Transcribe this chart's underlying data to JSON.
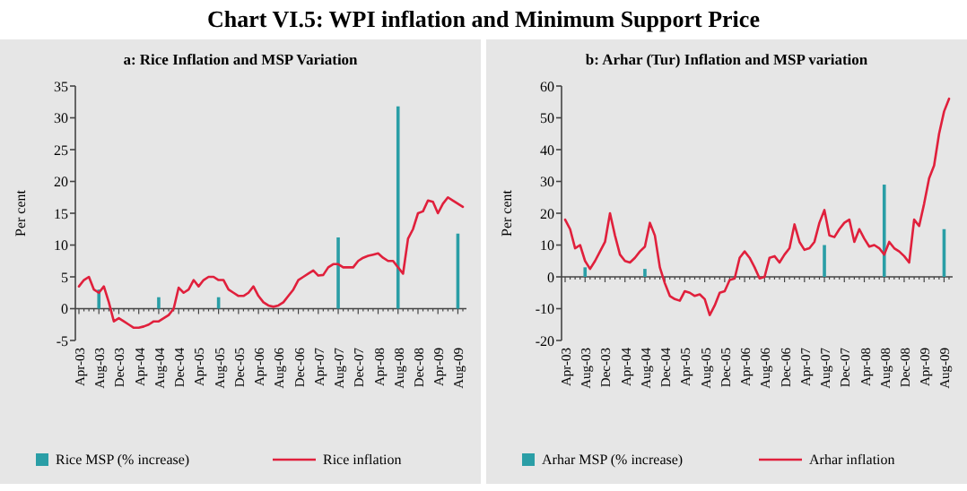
{
  "chart_data": [
    {
      "type": "line",
      "title": "Chart VI.5: WPI inflation and Minimum Support Price",
      "subtitle": "a: Rice Inflation and MSP Variation",
      "ylabel": "Per cent",
      "legend": "bottom",
      "categories": [
        "Apr-03",
        null,
        null,
        null,
        "Aug-03",
        null,
        null,
        null,
        "Dec-03",
        null,
        null,
        null,
        "Apr-04",
        null,
        null,
        null,
        "Aug-04",
        null,
        null,
        null,
        "Dec-04",
        null,
        null,
        null,
        "Apr-05",
        null,
        null,
        null,
        "Aug-05",
        null,
        null,
        null,
        "Dec-05",
        null,
        null,
        null,
        "Apr-06",
        null,
        null,
        null,
        "Aug-06",
        null,
        null,
        null,
        "Dec-06",
        null,
        null,
        null,
        "Apr-07",
        null,
        null,
        null,
        "Aug-07",
        null,
        null,
        null,
        "Dec-07",
        null,
        null,
        null,
        "Apr-08",
        null,
        null,
        null,
        "Aug-08",
        null,
        null,
        null,
        "Dec-08",
        null,
        null,
        null,
        "Apr-09",
        null,
        null,
        null,
        "Aug-09",
        null
      ],
      "ylim": [
        -5,
        35
      ],
      "yticks": [
        -5,
        0,
        5,
        10,
        15,
        20,
        25,
        30,
        35
      ],
      "series": [
        {
          "type": "bar",
          "name": "Rice MSP (% increase)",
          "color": "#2a9ea6",
          "values": [
            null,
            null,
            null,
            null,
            3,
            null,
            null,
            null,
            null,
            null,
            null,
            null,
            null,
            null,
            null,
            null,
            1.8,
            null,
            null,
            null,
            null,
            null,
            null,
            null,
            null,
            null,
            null,
            null,
            1.8,
            null,
            null,
            null,
            null,
            null,
            null,
            null,
            null,
            null,
            null,
            null,
            null,
            null,
            null,
            null,
            null,
            null,
            null,
            null,
            null,
            null,
            null,
            null,
            11.2,
            null,
            null,
            null,
            null,
            null,
            null,
            null,
            null,
            null,
            null,
            null,
            31.8,
            null,
            null,
            null,
            null,
            null,
            null,
            null,
            null,
            null,
            null,
            null,
            11.8,
            null
          ]
        },
        {
          "name": "Rice inflation",
          "color": "#e0203c",
          "values": [
            3.5,
            4.5,
            5,
            3,
            2.5,
            3.5,
            1,
            -2,
            -1.5,
            -2,
            -2.5,
            -3,
            -3,
            -2.8,
            -2.5,
            -2,
            -2,
            -1.5,
            -1,
            0,
            3.3,
            2.5,
            3,
            4.5,
            3.5,
            4.5,
            5,
            5,
            4.5,
            4.5,
            3,
            2.5,
            2,
            2,
            2.5,
            3.5,
            2,
            1,
            0.5,
            0.3,
            0.5,
            1,
            2,
            3,
            4.5,
            5,
            5.5,
            6,
            5.2,
            5.3,
            6.5,
            7,
            7,
            6.5,
            6.5,
            6.5,
            7.5,
            8,
            8.3,
            8.5,
            8.7,
            8,
            7.5,
            7.5,
            6.5,
            5.5,
            11,
            12.5,
            15,
            15.3,
            17,
            16.8,
            15,
            16.5,
            17.5,
            17,
            16.5,
            16
          ]
        }
      ]
    },
    {
      "type": "line",
      "subtitle": "b: Arhar (Tur) Inflation and MSP variation",
      "ylabel": "Per cent",
      "legend": "bottom",
      "categories": [
        "Apr-03",
        null,
        null,
        null,
        "Aug-03",
        null,
        null,
        null,
        "Dec-03",
        null,
        null,
        null,
        "Apr-04",
        null,
        null,
        null,
        "Aug-04",
        null,
        null,
        null,
        "Dec-04",
        null,
        null,
        null,
        "Apr-05",
        null,
        null,
        null,
        "Aug-05",
        null,
        null,
        null,
        "Dec-05",
        null,
        null,
        null,
        "Apr-06",
        null,
        null,
        null,
        "Aug-06",
        null,
        null,
        null,
        "Dec-06",
        null,
        null,
        null,
        "Apr-07",
        null,
        null,
        null,
        "Aug-07",
        null,
        null,
        null,
        "Dec-07",
        null,
        null,
        null,
        "Apr-08",
        null,
        null,
        null,
        "Aug-08",
        null,
        null,
        null,
        "Dec-08",
        null,
        null,
        null,
        "Apr-09",
        null,
        null,
        null,
        "Aug-09",
        null
      ],
      "ylim": [
        -20,
        60
      ],
      "yticks": [
        -20,
        -10,
        0,
        10,
        20,
        30,
        40,
        50,
        60
      ],
      "series": [
        {
          "type": "bar",
          "name": "Arhar MSP (% increase)",
          "color": "#2a9ea6",
          "values": [
            null,
            null,
            null,
            null,
            3,
            null,
            null,
            null,
            null,
            null,
            null,
            null,
            null,
            null,
            null,
            null,
            2.5,
            null,
            null,
            null,
            null,
            null,
            null,
            null,
            null,
            null,
            null,
            null,
            null,
            null,
            null,
            null,
            null,
            null,
            null,
            null,
            null,
            null,
            null,
            null,
            null,
            null,
            null,
            null,
            null,
            null,
            null,
            null,
            null,
            null,
            null,
            null,
            10,
            null,
            null,
            null,
            null,
            null,
            null,
            null,
            null,
            null,
            null,
            null,
            29,
            null,
            null,
            null,
            null,
            null,
            null,
            null,
            null,
            null,
            null,
            null,
            15,
            null
          ]
        },
        {
          "name": "Arhar inflation",
          "color": "#e0203c",
          "values": [
            18,
            15,
            9,
            10,
            5,
            2.5,
            5,
            8,
            11,
            20,
            13,
            7,
            5,
            4.5,
            6,
            8,
            9.5,
            17,
            13,
            3,
            -2,
            -6,
            -7,
            -7.5,
            -4.5,
            -5,
            -6,
            -5.5,
            -7,
            -12,
            -9,
            -5,
            -4.5,
            -1,
            -0.5,
            6,
            8,
            6,
            3,
            -0.5,
            0,
            6,
            6.5,
            4.5,
            7,
            9,
            16.5,
            11,
            8.5,
            9,
            11,
            17,
            21,
            13,
            12.5,
            15,
            17,
            18,
            11,
            15,
            12,
            9.5,
            10,
            9,
            7,
            11,
            9,
            8,
            6.5,
            4.5,
            18,
            16,
            23,
            31,
            35,
            45,
            52,
            56
          ]
        }
      ]
    }
  ]
}
